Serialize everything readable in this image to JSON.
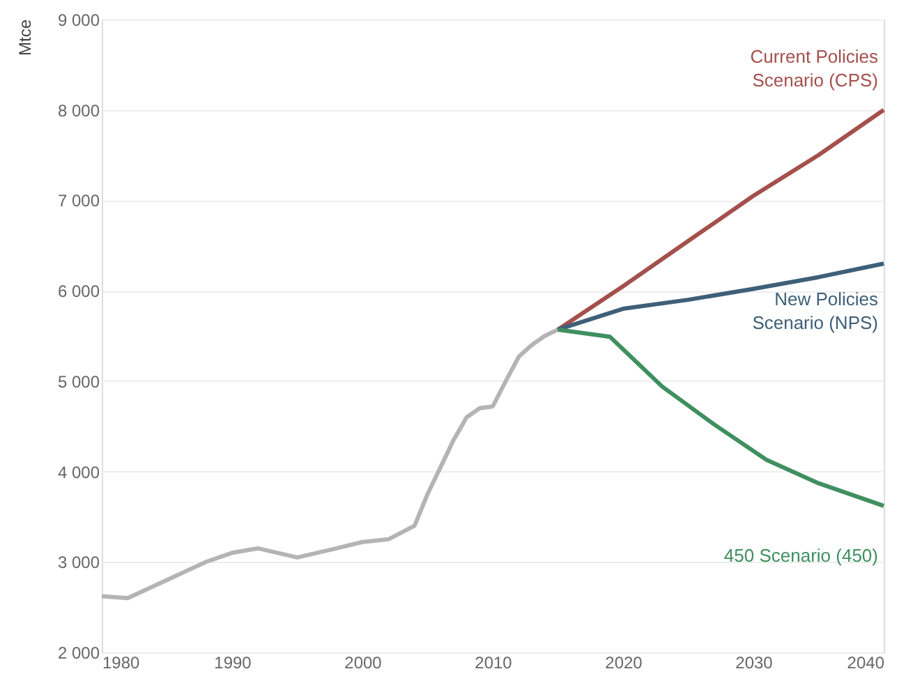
{
  "chart_data": {
    "type": "line",
    "ylabel": "Mtce",
    "xlim": [
      1980,
      2040
    ],
    "xticks": [
      1980,
      1990,
      2000,
      2010,
      2020,
      2030,
      2040
    ],
    "ylim": [
      2000,
      9000
    ],
    "yticks": [
      {
        "value": 2000,
        "label": "2 000"
      },
      {
        "value": 3000,
        "label": "3 000"
      },
      {
        "value": 4000,
        "label": "4 000"
      },
      {
        "value": 5000,
        "label": "5 000"
      },
      {
        "value": 6000,
        "label": "6 000"
      },
      {
        "value": 7000,
        "label": "7 000"
      },
      {
        "value": 8000,
        "label": "8 000"
      },
      {
        "value": 9000,
        "label": "9 000"
      }
    ],
    "grid": "y",
    "marker": "none",
    "line_style": "solid",
    "series": [
      {
        "color": "#b4b4b4",
        "x": [
          1980,
          1982,
          1985,
          1988,
          1990,
          1992,
          1995,
          1998,
          2000,
          2002,
          2004,
          2005,
          2006,
          2007,
          2008,
          2009,
          2010,
          2011,
          2012,
          2013,
          2014,
          2015
        ],
        "values": [
          2620,
          2600,
          2800,
          3000,
          3100,
          3150,
          3050,
          3150,
          3220,
          3250,
          3400,
          3750,
          4050,
          4350,
          4600,
          4700,
          4720,
          5000,
          5270,
          5400,
          5500,
          5570
        ]
      },
      {
        "name": "Current Policies Scenario (CPS)",
        "color": "#a4504c",
        "x": [
          2015,
          2020,
          2025,
          2030,
          2035,
          2040
        ],
        "values": [
          5570,
          6050,
          6550,
          7050,
          7500,
          8000
        ]
      },
      {
        "name": "New Policies Scenario (NPS)",
        "color": "#3e5f78",
        "x": [
          2015,
          2020,
          2025,
          2030,
          2035,
          2040
        ],
        "values": [
          5570,
          5800,
          5900,
          6020,
          6150,
          6300
        ]
      },
      {
        "name": "450 Scenario (450)",
        "color": "#3f8f5f",
        "x": [
          2015,
          2019,
          2023,
          2027,
          2031,
          2035,
          2040
        ],
        "values": [
          5570,
          5490,
          4940,
          4520,
          4130,
          3870,
          3620
        ]
      }
    ]
  }
}
